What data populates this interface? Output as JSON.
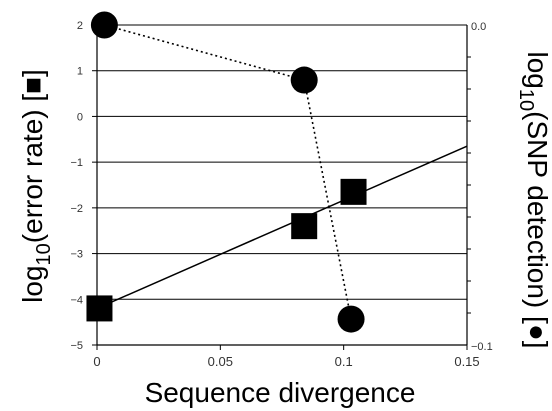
{
  "chart_data": {
    "type": "scatter",
    "xlabel": "Sequence divergence",
    "ylabel_left": "log",
    "ylabel_left_sub": "10",
    "ylabel_left_rest": "(error rate) [■]",
    "ylabel_right": "log",
    "ylabel_right_sub": "10",
    "ylabel_right_rest": "(SNP detection) [●]",
    "xlim": [
      0,
      0.15
    ],
    "ylim_left": [
      -5,
      2
    ],
    "ylim_right": [
      -0.1,
      0.0
    ],
    "x_ticks": [
      0,
      0.05,
      0.1,
      0.15
    ],
    "x_tick_labels": [
      "0",
      "0.05",
      "0.1",
      "0.15"
    ],
    "y_left_ticks": [
      2,
      1,
      0,
      -1,
      -2,
      -3,
      -4,
      -5
    ],
    "y_left_tick_labels": [
      "2",
      "1",
      "0",
      "−1",
      "−2",
      "−3",
      "−4",
      "−5"
    ],
    "y_right_ticks": [
      0.0,
      -0.1
    ],
    "y_right_tick_labels": [
      "0.0",
      "−0.1"
    ],
    "grid": "horizontal",
    "series": [
      {
        "marker": "square",
        "axis": "left",
        "x": [
          0.001,
          0.084,
          0.104
        ],
        "y": [
          -4.2,
          -2.4,
          -1.65
        ],
        "trend_line": {
          "x": [
            0,
            0.15
          ],
          "y": [
            -4.2,
            -0.65
          ]
        }
      },
      {
        "marker": "circle",
        "axis": "right",
        "line": "dotted",
        "x": [
          0.003,
          0.084,
          0.103
        ],
        "y": [
          0.0,
          -0.0172,
          -0.0919
        ]
      }
    ]
  }
}
